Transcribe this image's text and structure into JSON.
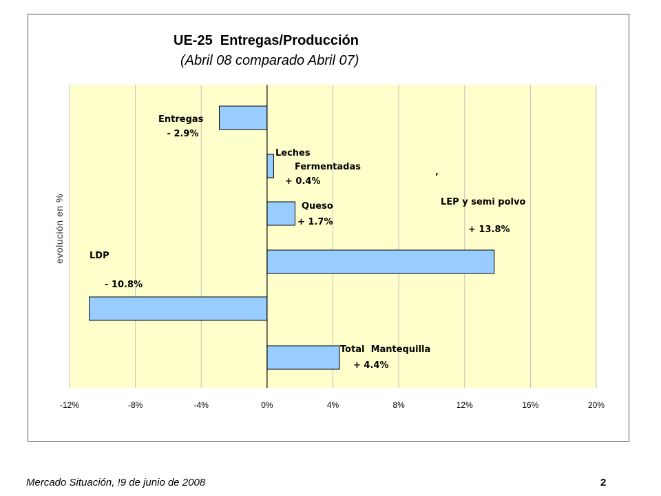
{
  "chart_data": {
    "type": "bar",
    "orientation": "horizontal",
    "title": "UE-25  Entregas/Producción",
    "subtitle": "(Abril 08 comparado Abril 07)",
    "ylabel": "evolución en %",
    "xlim": [
      -12,
      20
    ],
    "xticks": [
      "-12%",
      "-8%",
      "-4%",
      "0%",
      "4%",
      "8%",
      "12%",
      "16%",
      "20%"
    ],
    "grid": true,
    "categories": [
      "Entregas",
      "Leches Fermentadas",
      "Queso",
      "LEP y semi polvo",
      "LDP",
      "Total Mantequilla"
    ],
    "values": [
      -2.9,
      0.4,
      1.7,
      13.8,
      -10.8,
      4.4
    ],
    "annotations": [
      {
        "lines": [
          "Entregas",
          " - 2.9%"
        ]
      },
      {
        "lines": [
          "Leches",
          "Fermentadas",
          "+ 0.4%"
        ]
      },
      {
        "lines": [
          "Queso",
          "+ 1.7%"
        ]
      },
      {
        "lines": [
          "’",
          "LEP y semi polvo",
          "+ 13.8%"
        ]
      },
      {
        "lines": [
          "LDP",
          "- 10.8%"
        ]
      },
      {
        "lines": [
          "Total  Mantequilla",
          "+ 4.4%"
        ]
      }
    ],
    "colors": {
      "plot_bg": "#ffffcc",
      "bar_fill": "#99ccff",
      "bar_stroke": "#000000",
      "grid": "#c0c0c0"
    }
  },
  "footer": {
    "left": "Mercado Situación, !9 de junio de 2008",
    "page_number": "2"
  }
}
